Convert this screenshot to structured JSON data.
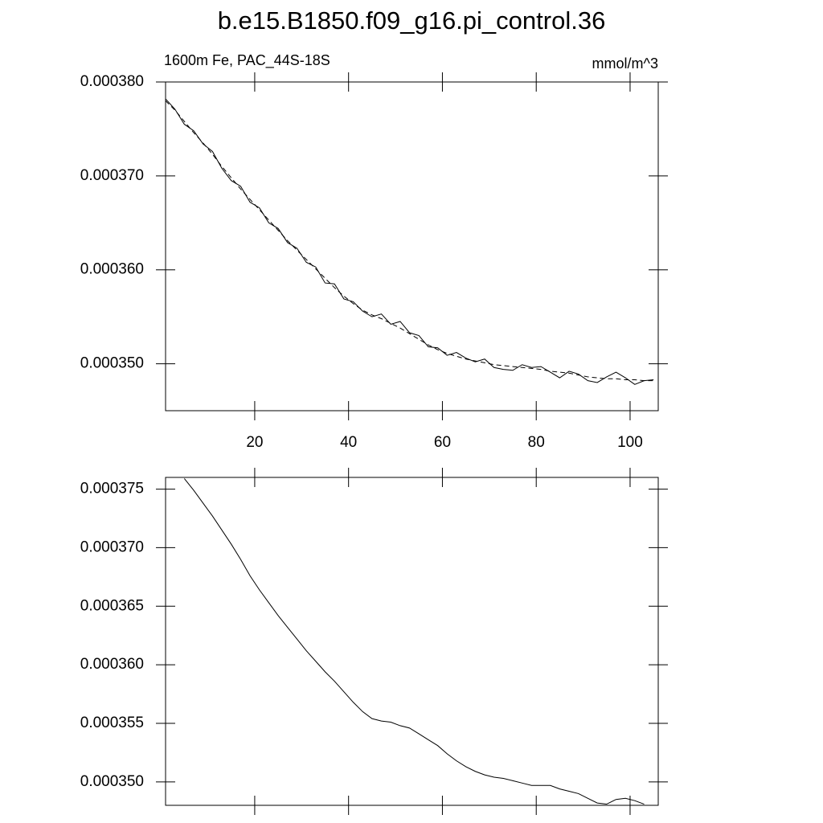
{
  "title": "b.e15.B1850.f09_g16.pi_control.36",
  "chart_data": [
    {
      "type": "line",
      "subtitle_left": "1600m Fe, PAC_44S-18S",
      "subtitle_right": "mmol/m^3",
      "x": [
        1,
        3,
        5,
        7,
        9,
        11,
        13,
        15,
        17,
        19,
        21,
        23,
        25,
        27,
        29,
        31,
        33,
        35,
        37,
        39,
        41,
        43,
        45,
        47,
        49,
        51,
        53,
        55,
        57,
        59,
        61,
        63,
        65,
        67,
        69,
        71,
        73,
        75,
        77,
        79,
        81,
        83,
        85,
        87,
        89,
        91,
        93,
        95,
        97,
        99,
        101,
        103,
        105
      ],
      "series": [
        {
          "color": "#000000",
          "dashed": false,
          "values": [
            0.0003782,
            0.0003771,
            0.0003755,
            0.0003748,
            0.0003734,
            0.0003726,
            0.0003708,
            0.0003695,
            0.0003689,
            0.0003672,
            0.0003666,
            0.000365,
            0.0003644,
            0.0003629,
            0.0003623,
            0.0003608,
            0.0003603,
            0.0003586,
            0.0003585,
            0.0003569,
            0.0003566,
            0.0003556,
            0.000355,
            0.0003553,
            0.0003542,
            0.0003545,
            0.0003533,
            0.000353,
            0.0003518,
            0.0003517,
            0.0003509,
            0.0003512,
            0.0003506,
            0.0003502,
            0.0003505,
            0.0003496,
            0.0003494,
            0.0003493,
            0.0003499,
            0.0003496,
            0.0003497,
            0.0003491,
            0.0003485,
            0.0003492,
            0.0003489,
            0.0003482,
            0.000348,
            0.0003486,
            0.0003491,
            0.0003485,
            0.0003478,
            0.0003482,
            0.0003483
          ]
        },
        {
          "color": "#000000",
          "dashed": true,
          "values": [
            0.000378,
            0.000377,
            0.0003758,
            0.0003746,
            0.0003735,
            0.0003723,
            0.000371,
            0.0003698,
            0.0003686,
            0.0003675,
            0.0003664,
            0.0003653,
            0.0003642,
            0.0003631,
            0.0003621,
            0.0003611,
            0.0003601,
            0.0003591,
            0.0003581,
            0.0003572,
            0.0003564,
            0.0003557,
            0.0003552,
            0.0003548,
            0.0003543,
            0.0003538,
            0.0003532,
            0.0003526,
            0.000352,
            0.0003515,
            0.0003511,
            0.0003508,
            0.0003505,
            0.0003503,
            0.0003501,
            0.0003499,
            0.0003498,
            0.0003497,
            0.0003496,
            0.0003495,
            0.0003494,
            0.0003492,
            0.0003491,
            0.000349,
            0.0003488,
            0.0003486,
            0.0003485,
            0.0003484,
            0.0003484,
            0.0003483,
            0.0003483,
            0.0003482,
            0.0003482
          ]
        }
      ],
      "xlim": [
        1,
        106
      ],
      "xticks": [
        20,
        40,
        60,
        80,
        100
      ],
      "xtick_labels": true,
      "ylim": [
        0.000345,
        0.00038
      ],
      "yticks": [
        {
          "value": 0.00035,
          "label": "0.000350"
        },
        {
          "value": 0.00036,
          "label": "0.000360"
        },
        {
          "value": 0.00037,
          "label": "0.000370"
        },
        {
          "value": 0.00038,
          "label": "0.000380"
        }
      ]
    },
    {
      "type": "line",
      "x": [
        5,
        7,
        9,
        11,
        13,
        15,
        17,
        19,
        21,
        23,
        25,
        27,
        29,
        31,
        33,
        35,
        37,
        39,
        41,
        43,
        45,
        47,
        49,
        51,
        53,
        55,
        57,
        59,
        61,
        63,
        65,
        67,
        69,
        71,
        73,
        75,
        77,
        79,
        81,
        83,
        85,
        87,
        89,
        91,
        93,
        95,
        97,
        99,
        101,
        103
      ],
      "series": [
        {
          "color": "#000000",
          "dashed": false,
          "values": [
            0.0003759,
            0.0003749,
            0.0003738,
            0.0003727,
            0.0003715,
            0.0003703,
            0.000369,
            0.0003676,
            0.0003664,
            0.0003653,
            0.0003642,
            0.0003632,
            0.0003622,
            0.0003612,
            0.0003603,
            0.0003594,
            0.0003586,
            0.0003577,
            0.0003568,
            0.000356,
            0.0003554,
            0.0003552,
            0.0003551,
            0.0003548,
            0.0003546,
            0.0003541,
            0.0003536,
            0.0003531,
            0.0003524,
            0.0003518,
            0.0003513,
            0.0003509,
            0.0003506,
            0.0003504,
            0.0003503,
            0.0003501,
            0.0003499,
            0.0003497,
            0.0003497,
            0.0003497,
            0.0003494,
            0.0003492,
            0.000349,
            0.0003486,
            0.0003482,
            0.0003481,
            0.0003485,
            0.0003486,
            0.0003484,
            0.0003481
          ]
        }
      ],
      "xlim": [
        1,
        106
      ],
      "xticks": [
        20,
        40,
        60,
        80,
        100
      ],
      "xtick_labels": false,
      "ylim": [
        0.000348,
        0.000376
      ],
      "yticks": [
        {
          "value": 0.00035,
          "label": "0.000350"
        },
        {
          "value": 0.000355,
          "label": "0.000355"
        },
        {
          "value": 0.00036,
          "label": "0.000360"
        },
        {
          "value": 0.000365,
          "label": "0.000365"
        },
        {
          "value": 0.00037,
          "label": "0.000370"
        },
        {
          "value": 0.000375,
          "label": "0.000375"
        }
      ]
    }
  ]
}
